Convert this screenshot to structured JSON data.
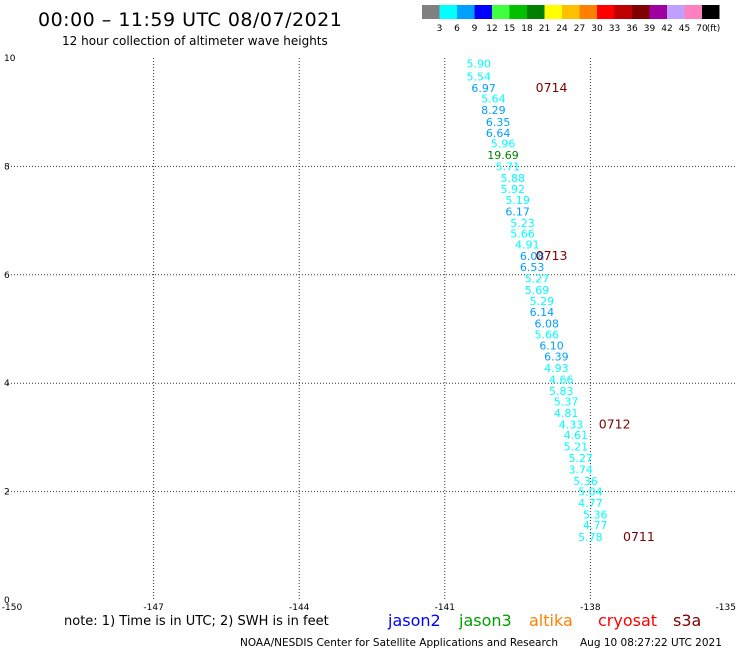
{
  "title": "00:00 – 11:59 UTC 08/07/2021",
  "subtitle": "12 hour collection of altimeter wave heights",
  "note": "note: 1) Time is in UTC; 2) SWH is in feet",
  "footer_left": "NOAA/NESDIS Center for Satellite Applications and Research",
  "footer_right": "Aug 10 08:27:22 UTC 2021",
  "color_scale": {
    "unit": "(ft)",
    "bins": [
      {
        "label": "3",
        "color": "#808080"
      },
      {
        "label": "6",
        "color": "#00ffff"
      },
      {
        "label": "9",
        "color": "#00a0ff"
      },
      {
        "label": "12",
        "color": "#0000ff"
      },
      {
        "label": "15",
        "color": "#40ff40"
      },
      {
        "label": "18",
        "color": "#00c000"
      },
      {
        "label": "21",
        "color": "#008000"
      },
      {
        "label": "24",
        "color": "#ffff00"
      },
      {
        "label": "27",
        "color": "#ffc000"
      },
      {
        "label": "30",
        "color": "#ff8000"
      },
      {
        "label": "33",
        "color": "#ff0000"
      },
      {
        "label": "36",
        "color": "#c00000"
      },
      {
        "label": "39",
        "color": "#800000"
      },
      {
        "label": "42",
        "color": "#a000a0"
      },
      {
        "label": "45",
        "color": "#c0a0ff"
      },
      {
        "label": "70",
        "color": "#ff80c0"
      },
      {
        "label": "",
        "color": "#000000"
      }
    ]
  },
  "legend": [
    {
      "name": "jason2",
      "color": "#0000ff"
    },
    {
      "name": "jason3",
      "color": "#00a000"
    },
    {
      "name": "altika",
      "color": "#ff8000"
    },
    {
      "name": "cryosat",
      "color": "#ff0000"
    },
    {
      "name": "s3a",
      "color": "#800000"
    }
  ],
  "chart_data": {
    "type": "scatter",
    "xlim": [
      -150,
      -135
    ],
    "ylim": [
      0,
      10
    ],
    "xticks": [
      "-150",
      "-147",
      "-144",
      "-141",
      "-138",
      "-135"
    ],
    "yticks": [
      "0",
      "2",
      "4",
      "6",
      "8",
      "10"
    ],
    "grid": true,
    "points": [
      {
        "x": -140.3,
        "y": 9.9,
        "v": "5.90",
        "color": "#00ffff"
      },
      {
        "x": -140.3,
        "y": 9.66,
        "v": "5.54",
        "color": "#00ffff"
      },
      {
        "x": -140.2,
        "y": 9.45,
        "v": "6.97",
        "color": "#00a0ff"
      },
      {
        "x": -140.0,
        "y": 9.25,
        "v": "5.64",
        "color": "#00ffff"
      },
      {
        "x": -140.0,
        "y": 9.04,
        "v": "8.29",
        "color": "#00a0ff"
      },
      {
        "x": -139.9,
        "y": 8.82,
        "v": "6.35",
        "color": "#00a0ff"
      },
      {
        "x": -139.9,
        "y": 8.62,
        "v": "6.64",
        "color": "#00a0ff"
      },
      {
        "x": -139.8,
        "y": 8.42,
        "v": "5.96",
        "color": "#00ffff"
      },
      {
        "x": -139.8,
        "y": 8.21,
        "v": "19.69",
        "color": "#008000"
      },
      {
        "x": -139.7,
        "y": 8.0,
        "v": "5.71",
        "color": "#00ffff"
      },
      {
        "x": -139.6,
        "y": 7.79,
        "v": "5.88",
        "color": "#00ffff"
      },
      {
        "x": -139.6,
        "y": 7.58,
        "v": "5.92",
        "color": "#00ffff"
      },
      {
        "x": -139.5,
        "y": 7.38,
        "v": "5.19",
        "color": "#00ffff"
      },
      {
        "x": -139.5,
        "y": 7.17,
        "v": "6.17",
        "color": "#00a0ff"
      },
      {
        "x": -139.4,
        "y": 6.96,
        "v": "5.23",
        "color": "#00ffff"
      },
      {
        "x": -139.4,
        "y": 6.76,
        "v": "5.66",
        "color": "#00ffff"
      },
      {
        "x": -139.3,
        "y": 6.56,
        "v": "4.91",
        "color": "#00ffff"
      },
      {
        "x": -139.2,
        "y": 6.35,
        "v": "6.08",
        "color": "#00a0ff"
      },
      {
        "x": -139.2,
        "y": 6.14,
        "v": "6.53",
        "color": "#00a0ff"
      },
      {
        "x": -139.1,
        "y": 5.93,
        "v": "5.27",
        "color": "#00ffff"
      },
      {
        "x": -139.1,
        "y": 5.72,
        "v": "5.69",
        "color": "#00ffff"
      },
      {
        "x": -139.0,
        "y": 5.52,
        "v": "5.29",
        "color": "#00ffff"
      },
      {
        "x": -139.0,
        "y": 5.31,
        "v": "6.14",
        "color": "#00a0ff"
      },
      {
        "x": -138.9,
        "y": 5.1,
        "v": "6.08",
        "color": "#00a0ff"
      },
      {
        "x": -138.9,
        "y": 4.9,
        "v": "5.66",
        "color": "#00ffff"
      },
      {
        "x": -138.8,
        "y": 4.7,
        "v": "6.10",
        "color": "#00a0ff"
      },
      {
        "x": -138.7,
        "y": 4.49,
        "v": "6.39",
        "color": "#00a0ff"
      },
      {
        "x": -138.7,
        "y": 4.28,
        "v": "4.93",
        "color": "#00ffff"
      },
      {
        "x": -138.6,
        "y": 4.07,
        "v": "4.66",
        "color": "#00ffff"
      },
      {
        "x": -138.6,
        "y": 3.86,
        "v": "5.83",
        "color": "#00ffff"
      },
      {
        "x": -138.5,
        "y": 3.66,
        "v": "5.37",
        "color": "#00ffff"
      },
      {
        "x": -138.5,
        "y": 3.45,
        "v": "4.81",
        "color": "#00ffff"
      },
      {
        "x": -138.4,
        "y": 3.24,
        "v": "4.33",
        "color": "#00ffff"
      },
      {
        "x": -138.3,
        "y": 3.04,
        "v": "4.61",
        "color": "#00ffff"
      },
      {
        "x": -138.3,
        "y": 2.83,
        "v": "5.21",
        "color": "#00ffff"
      },
      {
        "x": -138.2,
        "y": 2.62,
        "v": "5.27",
        "color": "#00ffff"
      },
      {
        "x": -138.2,
        "y": 2.41,
        "v": "3.74",
        "color": "#00ffff"
      },
      {
        "x": -138.1,
        "y": 2.2,
        "v": "5.36",
        "color": "#00ffff"
      },
      {
        "x": -138.0,
        "y": 2.0,
        "v": "5.04",
        "color": "#00ffff"
      },
      {
        "x": -138.0,
        "y": 1.79,
        "v": "4.77",
        "color": "#00ffff"
      },
      {
        "x": -137.9,
        "y": 1.58,
        "v": "5.36",
        "color": "#00ffff"
      },
      {
        "x": -137.9,
        "y": 1.38,
        "v": "4.77",
        "color": "#00ffff"
      },
      {
        "x": -138.0,
        "y": 1.16,
        "v": "5.78",
        "color": "#00ffff"
      }
    ],
    "time_labels": [
      {
        "x": -138.8,
        "y": 9.45,
        "text": "0714"
      },
      {
        "x": -138.8,
        "y": 6.35,
        "text": "0713"
      },
      {
        "x": -137.5,
        "y": 3.24,
        "text": "0712"
      },
      {
        "x": -137.0,
        "y": 1.16,
        "text": "0711"
      }
    ]
  }
}
